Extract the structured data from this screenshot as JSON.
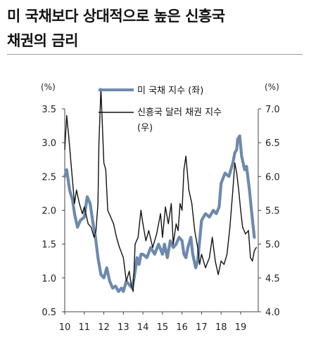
{
  "title_lines": [
    "미 국채보다 상대적으로 높은 신흥국",
    "채권의 금리"
  ],
  "chart_data": {
    "type": "line",
    "title": "미 국채보다 상대적으로 높은 신흥국 채권의 금리",
    "left_unit": "(%)",
    "right_unit": "(%)",
    "ylim_left": [
      0.5,
      3.5
    ],
    "ylim_right": [
      4.0,
      7.0
    ],
    "yticks_left": [
      "0.5",
      "1.0",
      "1.5",
      "2.0",
      "2.5",
      "3.0",
      "3.5"
    ],
    "yticks_right": [
      "4.0",
      "4.5",
      "5.0",
      "5.5",
      "6.0",
      "6.5",
      "7.0"
    ],
    "xlim": [
      2010,
      2019.9
    ],
    "xticks": [
      "10",
      "11",
      "12",
      "13",
      "14",
      "15",
      "16",
      "17",
      "18",
      "19"
    ],
    "legend_placement": "top",
    "colors": {
      "us_treasury": "#6d89ad",
      "em_bond": "#111111",
      "axis": "#444444"
    },
    "series": [
      {
        "name": "미 국채 지수 (좌)",
        "axis": "left",
        "x": [
          2010.0,
          2010.1,
          2010.25,
          2010.4,
          2010.5,
          2010.65,
          2010.8,
          2011.0,
          2011.15,
          2011.3,
          2011.45,
          2011.55,
          2011.7,
          2011.85,
          2012.0,
          2012.15,
          2012.3,
          2012.45,
          2012.6,
          2012.75,
          2012.9,
          2013.0,
          2013.15,
          2013.3,
          2013.45,
          2013.55,
          2013.7,
          2013.8,
          2013.9,
          2014.0,
          2014.2,
          2014.4,
          2014.6,
          2014.8,
          2015.0,
          2015.1,
          2015.25,
          2015.4,
          2015.55,
          2015.7,
          2015.85,
          2016.0,
          2016.1,
          2016.2,
          2016.3,
          2016.45,
          2016.55,
          2016.7,
          2016.8,
          2016.9,
          2017.0,
          2017.2,
          2017.4,
          2017.6,
          2017.75,
          2017.9,
          2018.0,
          2018.2,
          2018.4,
          2018.6,
          2018.7,
          2018.8,
          2018.85,
          2018.95,
          2019.05,
          2019.2,
          2019.3,
          2019.45,
          2019.55,
          2019.7
        ],
        "values": [
          2.5,
          2.6,
          2.3,
          2.15,
          1.95,
          1.75,
          1.85,
          1.9,
          2.2,
          2.1,
          1.8,
          1.65,
          1.3,
          1.05,
          1.0,
          1.15,
          0.95,
          0.85,
          0.88,
          0.8,
          0.85,
          0.8,
          0.95,
          0.9,
          0.85,
          1.0,
          1.3,
          1.2,
          1.35,
          1.35,
          1.3,
          1.45,
          1.35,
          1.5,
          1.35,
          1.5,
          1.3,
          1.55,
          1.45,
          1.5,
          1.6,
          1.55,
          1.35,
          1.3,
          1.45,
          1.6,
          1.35,
          1.15,
          1.25,
          1.55,
          1.85,
          1.95,
          1.9,
          2.0,
          1.95,
          2.05,
          2.4,
          2.55,
          2.5,
          2.7,
          2.85,
          2.9,
          3.05,
          3.1,
          2.8,
          2.6,
          2.65,
          2.3,
          2.0,
          1.6
        ]
      },
      {
        "name": "신흥국 달러 채권 지수 (우)",
        "axis": "right",
        "x": [
          2010.0,
          2010.1,
          2010.2,
          2010.35,
          2010.5,
          2010.6,
          2010.75,
          2010.9,
          2011.0,
          2011.2,
          2011.35,
          2011.5,
          2011.6,
          2011.7,
          2011.75,
          2011.85,
          2012.0,
          2012.1,
          2012.2,
          2012.35,
          2012.5,
          2012.65,
          2012.8,
          2013.0,
          2013.15,
          2013.3,
          2013.4,
          2013.5,
          2013.6,
          2013.75,
          2013.9,
          2014.0,
          2014.15,
          2014.3,
          2014.5,
          2014.7,
          2014.9,
          2015.0,
          2015.15,
          2015.3,
          2015.45,
          2015.55,
          2015.7,
          2015.8,
          2015.9,
          2016.0,
          2016.1,
          2016.2,
          2016.35,
          2016.5,
          2016.65,
          2016.8,
          2016.9,
          2017.0,
          2017.2,
          2017.4,
          2017.55,
          2017.7,
          2017.85,
          2018.0,
          2018.15,
          2018.3,
          2018.45,
          2018.6,
          2018.7,
          2018.8,
          2018.9,
          2019.0,
          2019.1,
          2019.25,
          2019.4,
          2019.5,
          2019.6,
          2019.7,
          2019.8
        ],
        "values": [
          6.4,
          6.9,
          6.6,
          6.1,
          5.6,
          5.8,
          5.6,
          5.45,
          5.55,
          5.3,
          5.25,
          5.1,
          5.2,
          5.6,
          6.5,
          7.3,
          6.2,
          6.1,
          5.5,
          5.4,
          5.3,
          5.1,
          4.95,
          4.8,
          4.45,
          4.6,
          4.4,
          4.3,
          5.0,
          5.1,
          5.5,
          5.3,
          5.05,
          5.2,
          4.95,
          5.15,
          5.45,
          5.1,
          5.55,
          5.3,
          5.6,
          5.0,
          5.3,
          5.2,
          5.6,
          5.5,
          6.1,
          6.3,
          5.8,
          5.6,
          5.2,
          4.95,
          4.7,
          4.85,
          4.65,
          4.8,
          5.1,
          4.75,
          4.55,
          4.75,
          4.7,
          4.85,
          5.25,
          5.8,
          6.2,
          6.05,
          5.8,
          5.5,
          5.25,
          5.15,
          5.2,
          4.8,
          4.75,
          4.9,
          4.95
        ]
      }
    ]
  }
}
